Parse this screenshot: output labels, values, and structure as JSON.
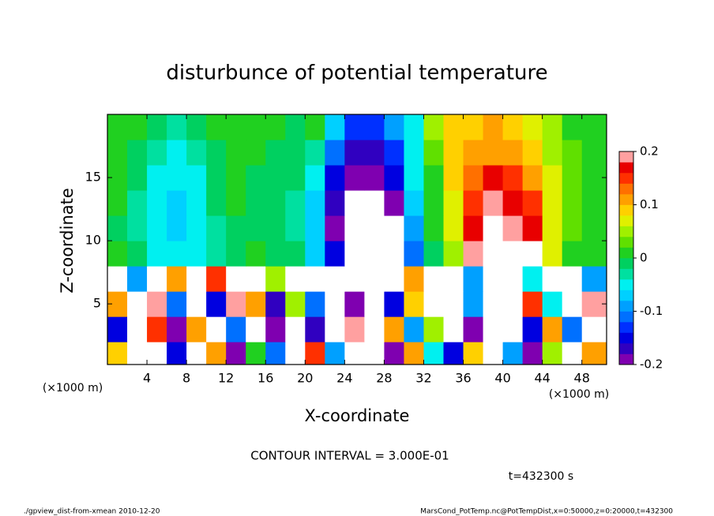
{
  "chart_data": {
    "type": "heatmap",
    "title": "disturbunce of potential temperature",
    "xlabel": "X-coordinate",
    "ylabel": "Z-coordinate",
    "x_unit_label": "(×1000 m)",
    "contour_note": "CONTOUR INTERVAL = 3.000E-01",
    "time_label": "t=432300 s",
    "footer_left": "./gpview_dist-from-xmean  2010-12-20",
    "footer_right": "MarsCond_PotTemp.nc@PotTempDist,x=0:50000,z=0:20000,t=432300",
    "x": [
      1,
      3,
      5,
      7,
      9,
      11,
      13,
      15,
      17,
      19,
      21,
      23,
      25,
      27,
      29,
      31,
      33,
      35,
      37,
      39,
      41,
      43,
      45,
      47,
      49
    ],
    "y": [
      1,
      3,
      5,
      7,
      9,
      11,
      13,
      15,
      17,
      19
    ],
    "z": [
      [
        0.08,
        -0.22,
        0.25,
        -0.15,
        -0.25,
        0.1,
        -0.2,
        0.02,
        -0.12,
        -0.25,
        0.15,
        -0.1,
        0.25,
        0.25,
        -0.2,
        0.1,
        -0.05,
        -0.15,
        0.08,
        0.25,
        -0.1,
        -0.2,
        0.05,
        -0.25,
        0.1
      ],
      [
        -0.15,
        0.25,
        0.15,
        -0.2,
        0.1,
        0.25,
        -0.12,
        0.25,
        -0.2,
        0.25,
        -0.18,
        0.25,
        0.2,
        0.25,
        0.1,
        -0.1,
        0.05,
        0.25,
        -0.2,
        0.25,
        0.25,
        -0.15,
        0.12,
        -0.12,
        0.25
      ],
      [
        0.12,
        -0.25,
        0.18,
        -0.12,
        0.25,
        -0.15,
        0.2,
        0.1,
        -0.18,
        0.05,
        -0.12,
        0.25,
        -0.2,
        0.25,
        -0.15,
        0.08,
        -0.22,
        0.25,
        -0.1,
        0.25,
        -0.25,
        0.15,
        -0.05,
        0.25,
        0.2
      ],
      [
        0.25,
        -0.1,
        0.25,
        0.1,
        -0.25,
        0.15,
        0.25,
        0.25,
        0.05,
        0.25,
        0.25,
        0.25,
        -0.25,
        0.25,
        0.25,
        0.1,
        -0.25,
        0.25,
        -0.1,
        0.25,
        0.25,
        -0.05,
        0.25,
        0.25,
        -0.1
      ],
      [
        0,
        -0.02,
        -0.04,
        -0.05,
        -0.05,
        -0.03,
        -0.01,
        0,
        -0.01,
        -0.02,
        -0.07,
        -0.16,
        -0.25,
        -0.25,
        -0.25,
        -0.12,
        -0.02,
        0.05,
        0.2,
        0.25,
        0.25,
        0.22,
        0.06,
        0.02,
        0
      ],
      [
        -0.01,
        -0.03,
        -0.05,
        -0.07,
        -0.06,
        -0.03,
        -0.01,
        -0.01,
        -0.02,
        -0.03,
        -0.08,
        -0.19,
        -0.25,
        -0.25,
        -0.22,
        -0.09,
        0,
        0.06,
        0.17,
        0.21,
        0.2,
        0.17,
        0.07,
        0.03,
        0
      ],
      [
        0,
        -0.03,
        -0.05,
        -0.07,
        -0.06,
        -0.02,
        0,
        -0.01,
        -0.02,
        -0.03,
        -0.07,
        -0.18,
        -0.25,
        -0.25,
        -0.2,
        -0.07,
        0.01,
        0.07,
        0.15,
        0.18,
        0.17,
        0.14,
        0.07,
        0.03,
        0.01
      ],
      [
        0,
        -0.02,
        -0.04,
        -0.05,
        -0.04,
        -0.02,
        0,
        -0.01,
        -0.02,
        -0.02,
        -0.05,
        -0.15,
        -0.19,
        -0.19,
        -0.16,
        -0.06,
        0.02,
        0.08,
        0.13,
        0.16,
        0.15,
        0.12,
        0.06,
        0.03,
        0.01
      ],
      [
        0.01,
        -0.01,
        -0.03,
        -0.04,
        -0.03,
        -0.01,
        0,
        0,
        -0.01,
        -0.01,
        -0.03,
        -0.12,
        -0.17,
        -0.17,
        -0.13,
        -0.05,
        0.03,
        0.08,
        0.1,
        0.12,
        0.1,
        0.08,
        0.05,
        0.03,
        0.01
      ],
      [
        0.01,
        0,
        -0.02,
        -0.03,
        -0.02,
        0,
        0.01,
        0,
        0,
        -0.01,
        0,
        -0.08,
        -0.14,
        -0.14,
        -0.1,
        -0.04,
        0.04,
        0.08,
        0.09,
        0.1,
        0.08,
        0.07,
        0.04,
        0.02,
        0
      ]
    ],
    "xlim": [
      0,
      50.5
    ],
    "ylim": [
      0.2,
      20
    ],
    "xticks": [
      4,
      8,
      12,
      16,
      20,
      24,
      28,
      32,
      36,
      40,
      44,
      48
    ],
    "yticks": [
      5,
      10,
      15
    ],
    "clim": [
      -0.2,
      0.2
    ],
    "cticks": [
      -0.2,
      -0.1,
      0,
      0.1,
      0.2
    ],
    "colors": [
      "#7f00b0",
      "#3000c0",
      "#0000e0",
      "#0030ff",
      "#0070ff",
      "#00a0ff",
      "#00d0ff",
      "#00f0f0",
      "#00e0a0",
      "#00d060",
      "#20d020",
      "#60e000",
      "#a0f000",
      "#e0f000",
      "#ffd000",
      "#ffa000",
      "#ff7000",
      "#ff3000",
      "#e80000",
      "#ffa0a0"
    ],
    "out_of_range_color": "#ffffff"
  }
}
